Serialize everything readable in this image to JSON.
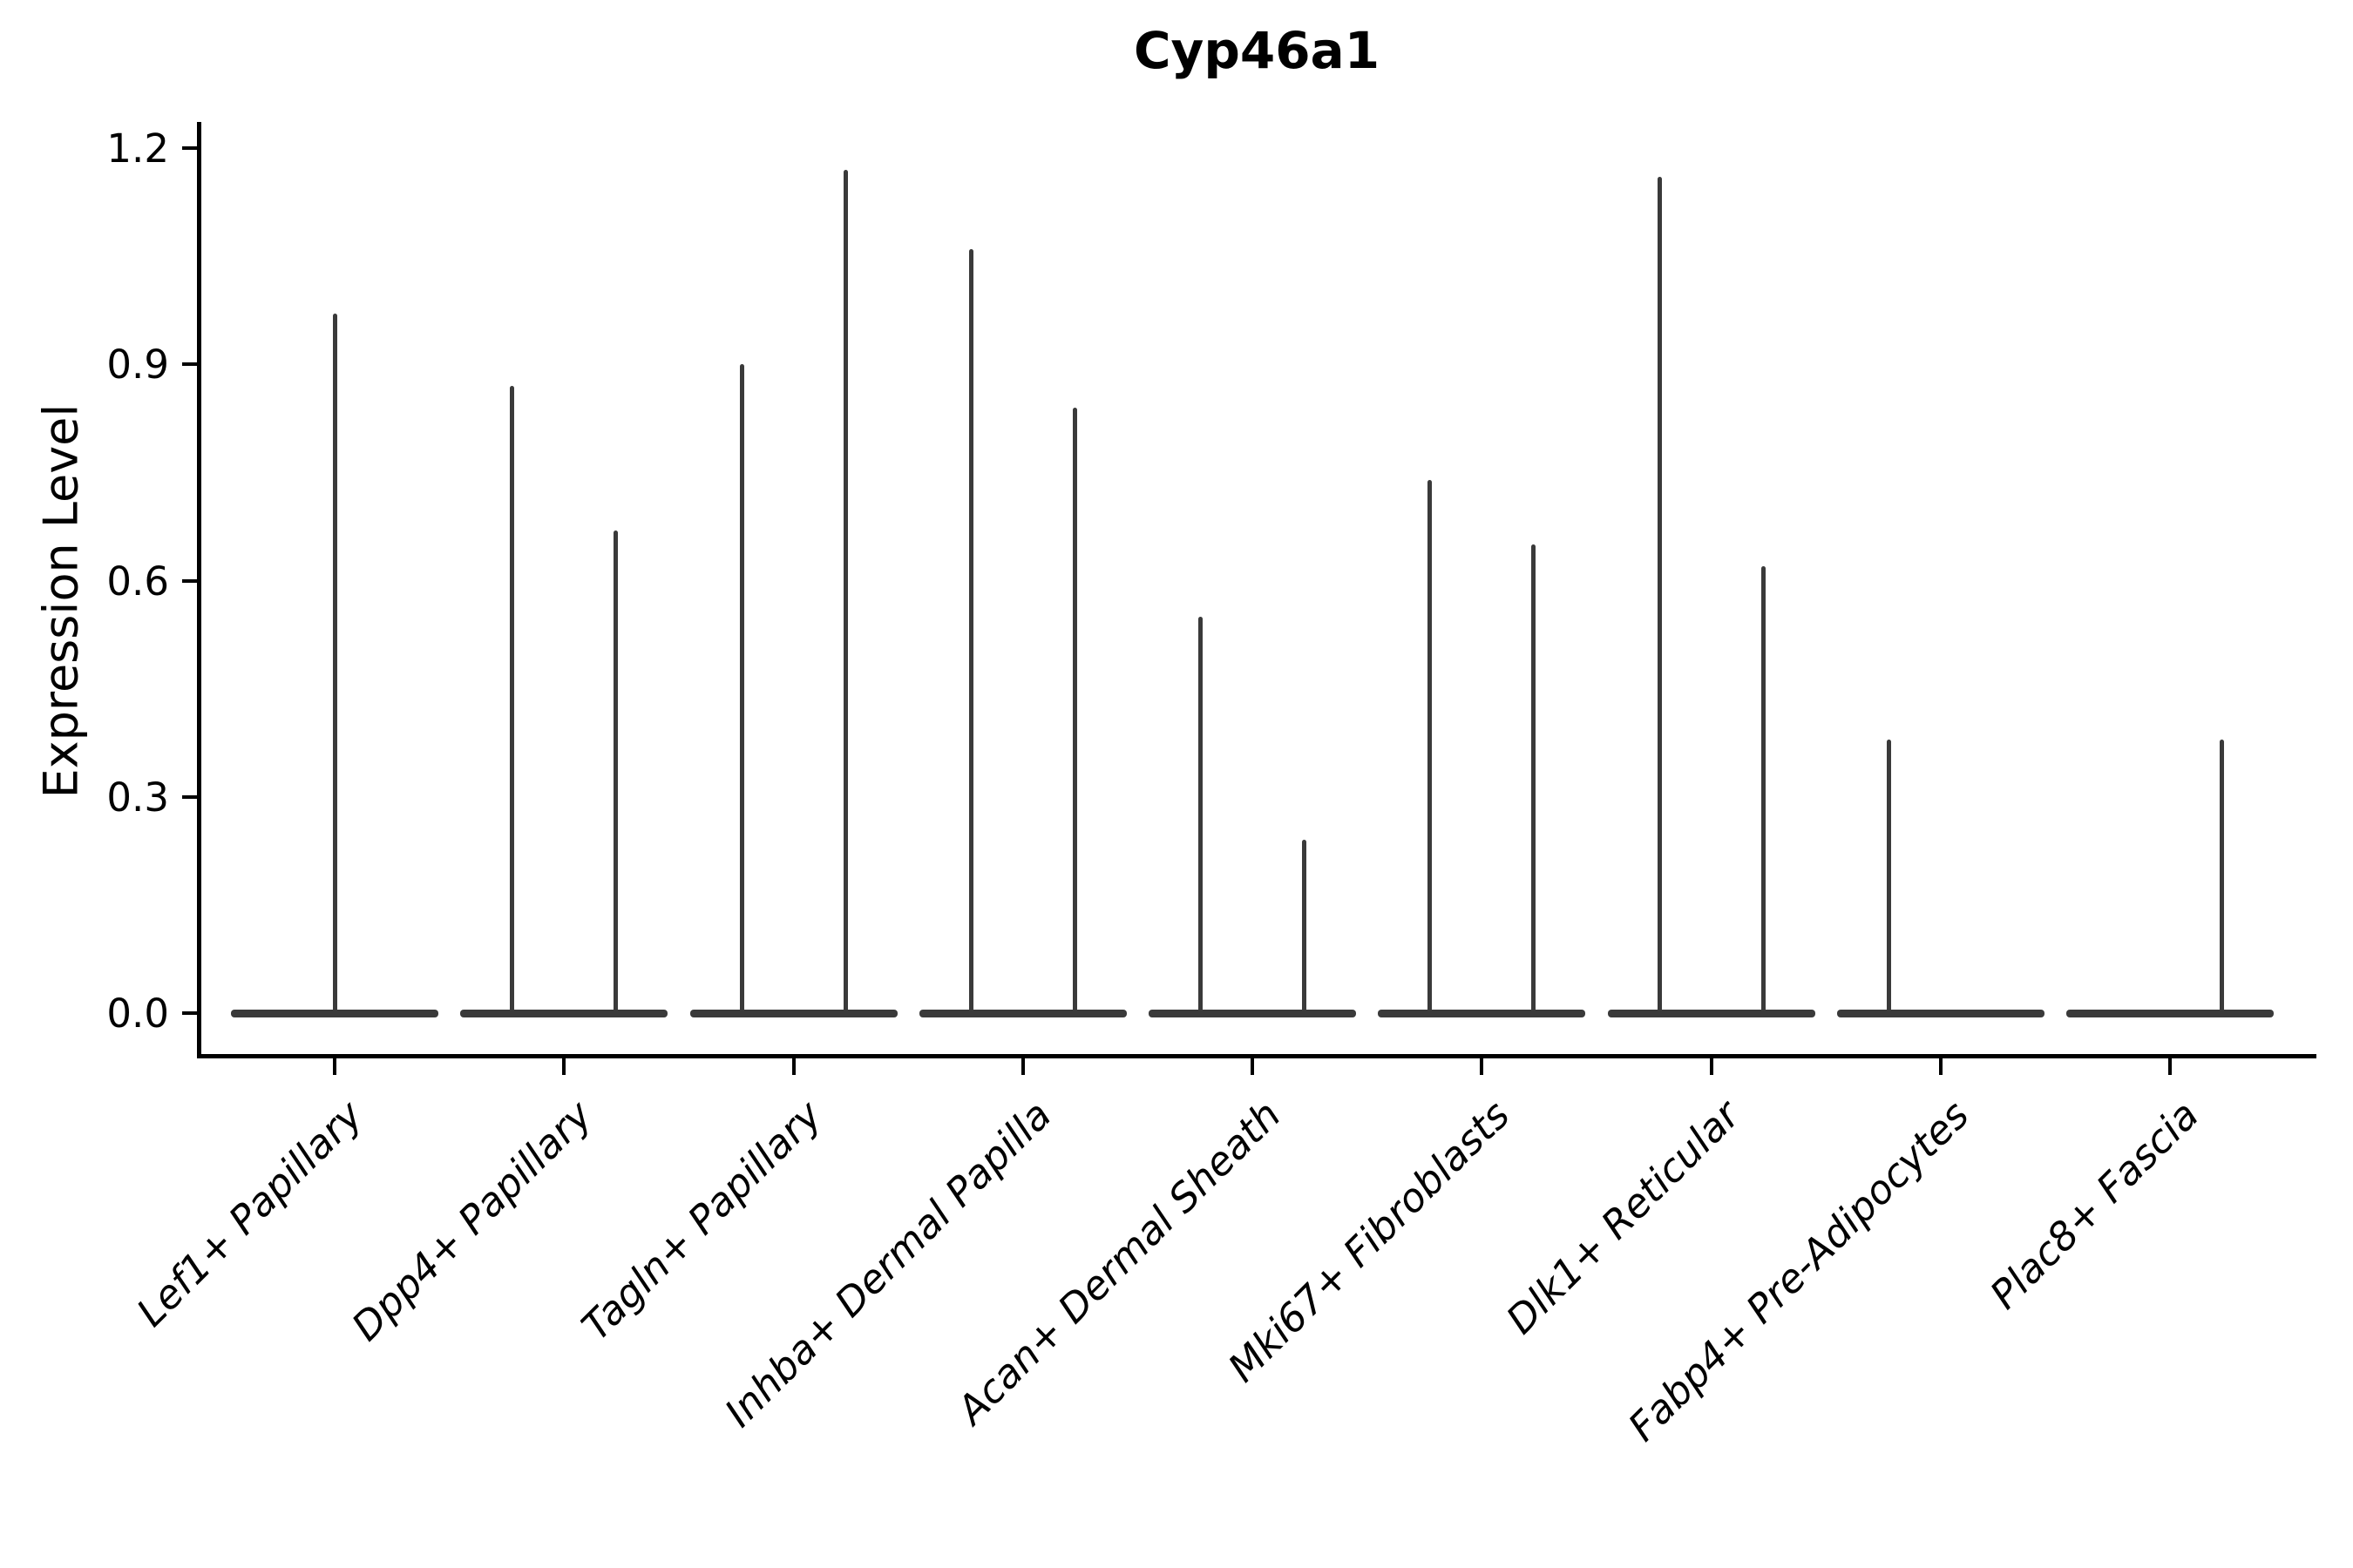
{
  "chart_data": {
    "type": "violin",
    "title": "Cyp46a1",
    "xlabel": "",
    "ylabel": "Expression Level",
    "ylim": [
      -0.06,
      1.25
    ],
    "yticks": [
      {
        "value": 0.0,
        "label": "0.0"
      },
      {
        "value": 0.3,
        "label": "0.3"
      },
      {
        "value": 0.6,
        "label": "0.6"
      },
      {
        "value": 0.9,
        "label": "0.9"
      },
      {
        "value": 1.2,
        "label": "1.2"
      }
    ],
    "grid": false,
    "legend_position": "none",
    "categories": [
      "Lef1+ Papillary",
      "Dpp4+ Papillary",
      "Tagln+ Papillary",
      "Inhba+ Dermal Papilla",
      "Acan+ Dermal Sheath",
      "Mki67+ Fibroblasts",
      "Dlk1+ Reticular",
      "Fabp4+ Pre-Adipocytes",
      "Plac8+ Fascia"
    ],
    "baseline_value": 0.0,
    "violins": [
      {
        "category": "Lef1+ Papillary",
        "spikes": [
          {
            "position": "center",
            "max": 0.97
          }
        ]
      },
      {
        "category": "Dpp4+ Papillary",
        "spikes": [
          {
            "position": "left",
            "max": 0.87
          },
          {
            "position": "right",
            "max": 0.67
          }
        ]
      },
      {
        "category": "Tagln+ Papillary",
        "spikes": [
          {
            "position": "left",
            "max": 0.9
          },
          {
            "position": "right",
            "max": 1.17
          }
        ]
      },
      {
        "category": "Inhba+ Dermal Papilla",
        "spikes": [
          {
            "position": "left",
            "max": 1.06
          },
          {
            "position": "right",
            "max": 0.84
          }
        ]
      },
      {
        "category": "Acan+ Dermal Sheath",
        "spikes": [
          {
            "position": "left",
            "max": 0.55
          },
          {
            "position": "right",
            "max": 0.24
          }
        ]
      },
      {
        "category": "Mki67+ Fibroblasts",
        "spikes": [
          {
            "position": "left",
            "max": 0.74
          },
          {
            "position": "right",
            "max": 0.65
          }
        ]
      },
      {
        "category": "Dlk1+ Reticular",
        "spikes": [
          {
            "position": "left",
            "max": 1.16
          },
          {
            "position": "right",
            "max": 0.62
          }
        ]
      },
      {
        "category": "Fabp4+ Pre-Adipocytes",
        "spikes": [
          {
            "position": "left",
            "max": 0.38
          }
        ]
      },
      {
        "category": "Plac8+ Fascia",
        "spikes": [
          {
            "position": "right",
            "max": 0.38
          }
        ]
      }
    ],
    "colors": {
      "violin": "#3a3a3a",
      "axis": "#000000",
      "text": "#000000"
    }
  }
}
